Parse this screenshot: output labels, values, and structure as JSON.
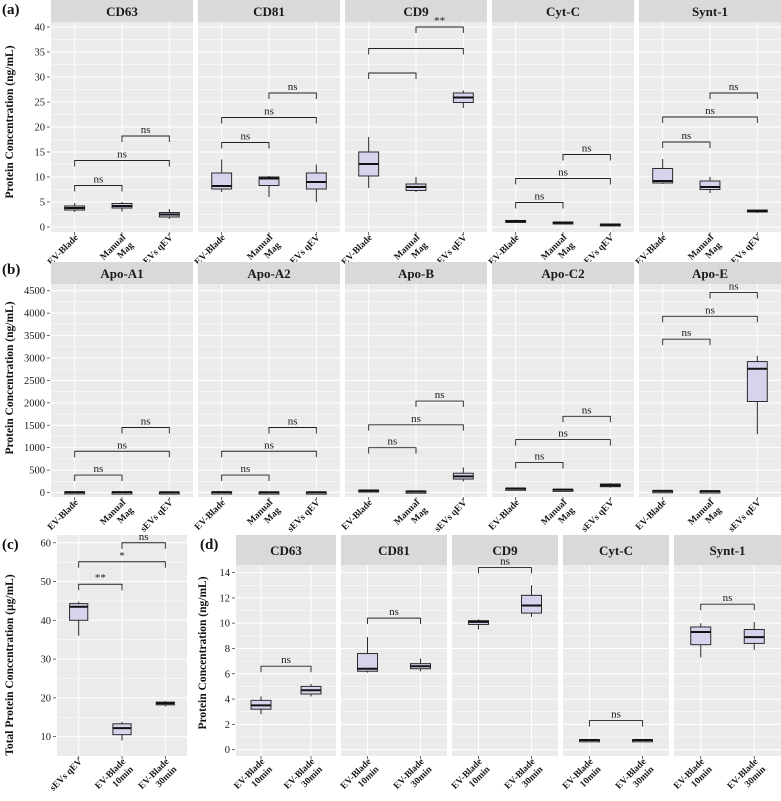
{
  "panel_labels": {
    "a": "(a)",
    "b": "(b)",
    "c": "(c)",
    "d": "(d)"
  },
  "y_labels": {
    "a": "Protein Concentration (ng/mL)",
    "b": "Protein Concentration (ng/mL)",
    "c": "Total Protein Concentration (µg/mL)",
    "d": "Protein Concentration (ng/mL)"
  },
  "colors": {
    "box_fill": "#d8d3ec",
    "box_line": "#2b2b2b",
    "panel_bg": "#ebebeb",
    "strip_bg": "#d9d9d9",
    "grid": "#ffffff",
    "text": "#1a1a1a"
  },
  "chart_data": [
    {
      "id": "a",
      "type": "box",
      "ylim": [
        -1,
        41
      ],
      "yticks": [
        0,
        5,
        10,
        15,
        20,
        25,
        30,
        35,
        40
      ],
      "categories": [
        [
          "EV-Blade"
        ],
        [
          "Manual",
          "Mag"
        ],
        [
          "sEVs qEV"
        ]
      ],
      "facets": [
        {
          "title": "CD63",
          "boxes": [
            [
              3.0,
              3.4,
              3.8,
              4.2,
              4.8
            ],
            [
              3.1,
              3.8,
              4.2,
              4.7,
              5.0
            ],
            [
              1.6,
              2.0,
              2.5,
              2.9,
              3.6
            ]
          ],
          "sig": [
            {
              "from": 0,
              "to": 1,
              "y": 8.3,
              "label": "ns"
            },
            {
              "from": 0,
              "to": 2,
              "y": 13.3,
              "label": "ns"
            },
            {
              "from": 1,
              "to": 2,
              "y": 18.2,
              "label": "ns"
            }
          ]
        },
        {
          "title": "CD81",
          "boxes": [
            [
              7.0,
              7.6,
              8.2,
              10.8,
              13.5
            ],
            [
              6.0,
              8.3,
              9.7,
              10.0,
              10.2
            ],
            [
              5.0,
              7.6,
              9.0,
              10.8,
              12.5
            ]
          ],
          "sig": [
            {
              "from": 0,
              "to": 1,
              "y": 16.9,
              "label": "ns"
            },
            {
              "from": 0,
              "to": 2,
              "y": 21.9,
              "label": "ns"
            },
            {
              "from": 1,
              "to": 2,
              "y": 26.8,
              "label": "ns"
            }
          ]
        },
        {
          "title": "CD9",
          "boxes": [
            [
              7.8,
              10.2,
              12.6,
              15.0,
              18.0
            ],
            [
              7.0,
              7.3,
              8.0,
              8.6,
              10.0
            ],
            [
              23.8,
              24.9,
              25.9,
              26.8,
              27.3
            ]
          ],
          "sig": [
            {
              "from": 0,
              "to": 1,
              "y": 30.8,
              "label": ""
            },
            {
              "from": 0,
              "to": 2,
              "y": 35.7,
              "label": ""
            },
            {
              "from": 1,
              "to": 2,
              "y": 40.0,
              "label": "**"
            }
          ]
        },
        {
          "title": "Cyt-C",
          "boxes": [
            [
              0.9,
              1.0,
              1.2,
              1.3,
              1.5
            ],
            [
              0.6,
              0.8,
              0.9,
              1.0,
              1.1
            ],
            [
              0.3,
              0.4,
              0.5,
              0.6,
              0.7
            ]
          ],
          "sig": [
            {
              "from": 0,
              "to": 1,
              "y": 4.9,
              "label": "ns"
            },
            {
              "from": 0,
              "to": 2,
              "y": 9.7,
              "label": "ns"
            },
            {
              "from": 1,
              "to": 2,
              "y": 14.5,
              "label": "ns"
            }
          ]
        },
        {
          "title": "Synt-1",
          "boxes": [
            [
              8.6,
              8.8,
              9.2,
              11.7,
              13.6
            ],
            [
              6.8,
              7.5,
              8.0,
              9.2,
              10.0
            ],
            [
              2.8,
              3.0,
              3.2,
              3.4,
              3.5
            ]
          ],
          "sig": [
            {
              "from": 0,
              "to": 1,
              "y": 17.0,
              "label": "ns"
            },
            {
              "from": 0,
              "to": 2,
              "y": 22.0,
              "label": "ns"
            },
            {
              "from": 1,
              "to": 2,
              "y": 26.8,
              "label": "ns"
            }
          ]
        }
      ]
    },
    {
      "id": "b",
      "type": "box",
      "ylim": [
        -100,
        4650
      ],
      "yticks": [
        0,
        500,
        1000,
        1500,
        2000,
        2500,
        3000,
        3500,
        4000,
        4500
      ],
      "categories": [
        [
          "EV-Blade"
        ],
        [
          "Manual",
          "Mag"
        ],
        [
          "sEVs qEV"
        ]
      ],
      "facets": [
        {
          "title": "Apo-A1",
          "boxes": [
            [
              5,
              8,
              10,
              12,
              15
            ],
            [
              3,
              5,
              8,
              10,
              12
            ],
            [
              3,
              5,
              7,
              9,
              12
            ]
          ],
          "sig": [
            {
              "from": 0,
              "to": 1,
              "y": 390,
              "label": "ns"
            },
            {
              "from": 0,
              "to": 2,
              "y": 920,
              "label": "ns"
            },
            {
              "from": 1,
              "to": 2,
              "y": 1450,
              "label": "ns"
            }
          ]
        },
        {
          "title": "Apo-A2",
          "boxes": [
            [
              4,
              6,
              9,
              11,
              14
            ],
            [
              3,
              5,
              7,
              9,
              11
            ],
            [
              3,
              4,
              6,
              8,
              10
            ]
          ],
          "sig": [
            {
              "from": 0,
              "to": 1,
              "y": 390,
              "label": "ns"
            },
            {
              "from": 0,
              "to": 2,
              "y": 920,
              "label": "ns"
            },
            {
              "from": 1,
              "to": 2,
              "y": 1450,
              "label": "ns"
            }
          ]
        },
        {
          "title": "Apo-B",
          "boxes": [
            [
              30,
              35,
              45,
              55,
              60
            ],
            [
              15,
              20,
              25,
              30,
              35
            ],
            [
              250,
              300,
              360,
              430,
              560
            ]
          ],
          "sig": [
            {
              "from": 0,
              "to": 1,
              "y": 1000,
              "label": "ns"
            },
            {
              "from": 0,
              "to": 2,
              "y": 1510,
              "label": "ns"
            },
            {
              "from": 1,
              "to": 2,
              "y": 2040,
              "label": "ns"
            }
          ]
        },
        {
          "title": "Apo-C2",
          "boxes": [
            [
              80,
              85,
              90,
              95,
              100
            ],
            [
              50,
              55,
              65,
              70,
              75
            ],
            [
              110,
              130,
              160,
              190,
              210
            ]
          ],
          "sig": [
            {
              "from": 0,
              "to": 1,
              "y": 670,
              "label": "ns"
            },
            {
              "from": 0,
              "to": 2,
              "y": 1180,
              "label": "ns"
            },
            {
              "from": 1,
              "to": 2,
              "y": 1700,
              "label": "ns"
            }
          ]
        },
        {
          "title": "Apo-E",
          "boxes": [
            [
              30,
              33,
              36,
              39,
              42
            ],
            [
              25,
              28,
              31,
              34,
              37
            ],
            [
              1300,
              2030,
              2760,
              2920,
              3050
            ]
          ],
          "sig": [
            {
              "from": 0,
              "to": 1,
              "y": 3420,
              "label": "ns"
            },
            {
              "from": 0,
              "to": 2,
              "y": 3930,
              "label": "ns"
            },
            {
              "from": 1,
              "to": 2,
              "y": 4460,
              "label": "ns"
            }
          ]
        }
      ]
    },
    {
      "id": "c",
      "type": "box",
      "ylim": [
        5,
        62
      ],
      "yticks": [
        10,
        20,
        30,
        40,
        50,
        60
      ],
      "categories": [
        [
          "sEVs qEV"
        ],
        [
          "EV-Blade",
          "10min"
        ],
        [
          "EV-Blade",
          "30min"
        ]
      ],
      "facets": [
        {
          "title": "",
          "boxes": [
            [
              36.0,
              40.0,
              43.5,
              44.3,
              44.8
            ],
            [
              9.0,
              10.5,
              12.2,
              13.3,
              13.8
            ],
            [
              17.8,
              18.2,
              18.6,
              18.9,
              19.2
            ]
          ],
          "sig": [
            {
              "from": 0,
              "to": 1,
              "y": 49.3,
              "label": "**"
            },
            {
              "from": 0,
              "to": 2,
              "y": 55.1,
              "label": "*"
            },
            {
              "from": 1,
              "to": 2,
              "y": 60.0,
              "label": "ns"
            }
          ]
        }
      ]
    },
    {
      "id": "d",
      "type": "box",
      "ylim": [
        -0.5,
        14.6
      ],
      "yticks": [
        0,
        2,
        4,
        6,
        8,
        10,
        12,
        14
      ],
      "categories": [
        [
          "EV-Blade",
          "10min"
        ],
        [
          "EV-Blade",
          "30min"
        ]
      ],
      "facets": [
        {
          "title": "CD63",
          "boxes": [
            [
              2.8,
              3.2,
              3.5,
              3.9,
              4.2
            ],
            [
              4.2,
              4.4,
              4.7,
              5.0,
              5.2
            ]
          ],
          "sig": [
            {
              "from": 0,
              "to": 1,
              "y": 6.6,
              "label": "ns"
            }
          ]
        },
        {
          "title": "CD81",
          "boxes": [
            [
              6.1,
              6.2,
              6.4,
              7.6,
              8.9
            ],
            [
              6.2,
              6.4,
              6.6,
              6.8,
              7.2
            ]
          ],
          "sig": [
            {
              "from": 0,
              "to": 1,
              "y": 10.4,
              "label": "ns"
            }
          ]
        },
        {
          "title": "CD9",
          "boxes": [
            [
              9.5,
              9.9,
              10.1,
              10.2,
              10.3
            ],
            [
              10.5,
              10.8,
              11.4,
              12.2,
              13.0
            ]
          ],
          "sig": [
            {
              "from": 0,
              "to": 1,
              "y": 14.4,
              "label": "ns"
            }
          ]
        },
        {
          "title": "Cyt-C",
          "boxes": [
            [
              0.72,
              0.74,
              0.76,
              0.78,
              0.8
            ],
            [
              0.72,
              0.74,
              0.76,
              0.78,
              0.8
            ]
          ],
          "sig": [
            {
              "from": 0,
              "to": 1,
              "y": 2.3,
              "label": "ns"
            }
          ]
        },
        {
          "title": "Synt-1",
          "boxes": [
            [
              7.3,
              8.3,
              9.3,
              9.7,
              10.0
            ],
            [
              7.9,
              8.4,
              8.9,
              9.5,
              10.1
            ]
          ],
          "sig": [
            {
              "from": 0,
              "to": 1,
              "y": 11.5,
              "label": "ns"
            }
          ]
        }
      ]
    }
  ]
}
